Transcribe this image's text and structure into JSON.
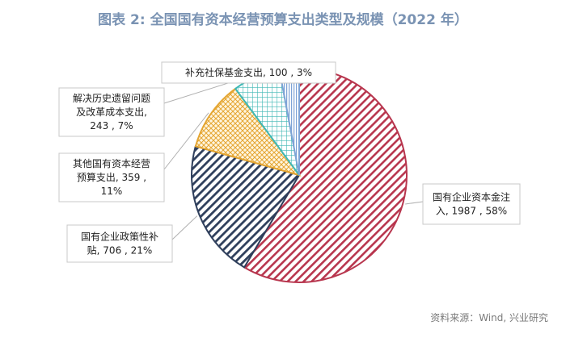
{
  "title": "图表 2:  全国国有资本经营预算支出类型及规模（2022 年）",
  "source": "资料来源：Wind, 兴业研究",
  "chart_data": {
    "type": "pie",
    "title": "图表 2:  全国国有资本经营预算支出类型及规模（2022 年）",
    "slices": [
      {
        "name": "国有企业资本金注入",
        "value": 1987,
        "percent": "58%",
        "color": "#b8364e",
        "pattern": "hatch-diag"
      },
      {
        "name": "国有企业政策性补贴",
        "value": 706,
        "percent": "21%",
        "color": "#2f3f5c",
        "pattern": "hatch-diag"
      },
      {
        "name": "其他国有资本经营预算支出",
        "value": 359,
        "percent": "11%",
        "color": "#e4a531",
        "pattern": "crosshatch"
      },
      {
        "name": "解决历史遗留问题及改革成本支出",
        "value": 243,
        "percent": "7%",
        "color": "#3fb8b5",
        "pattern": "grid"
      },
      {
        "name": "补充社保基金支出",
        "value": 100,
        "percent": "3%",
        "color": "#7ea3d6",
        "pattern": "vertical"
      }
    ],
    "labels": [
      {
        "lines": [
          "国有企业资本金注",
          "入, 1987 , 58%"
        ]
      },
      {
        "lines": [
          "国有企业政策性补",
          "贴, 706 , 21%"
        ]
      },
      {
        "lines": [
          "其他国有资本经营",
          "预算支出, 359 ,",
          "11%"
        ]
      },
      {
        "lines": [
          "解决历史遗留问题",
          "及改革成本支出,",
          "243 , 7%"
        ]
      },
      {
        "lines": [
          "补充社保基金支出, 100 , 3%"
        ]
      }
    ]
  }
}
